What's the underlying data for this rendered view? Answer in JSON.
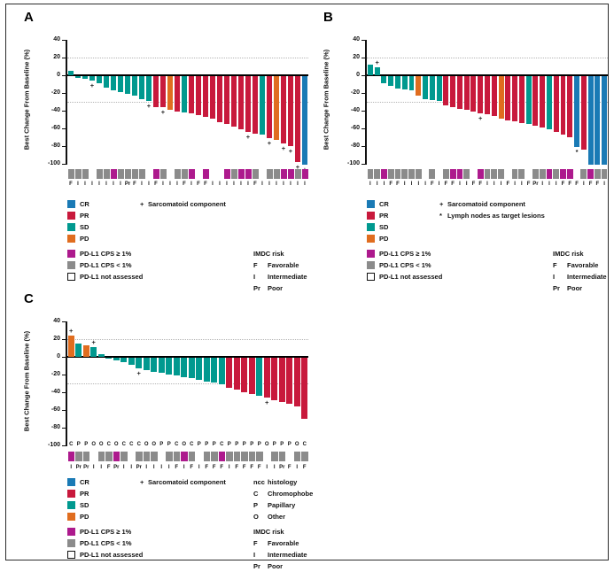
{
  "colors": {
    "CR": "#1A7AB5",
    "PR": "#C8193C",
    "SD": "#00998F",
    "PD": "#E06D1F",
    "pdl1_pos": "#AD1A8D",
    "pdl1_neg": "#8B8B8B",
    "pdl1_na": "#FFFFFF",
    "axis": "#111111",
    "refline": "#B4B4B4"
  },
  "legend": {
    "response": [
      {
        "code": "CR",
        "label": "CR"
      },
      {
        "code": "PR",
        "label": "PR"
      },
      {
        "code": "SD",
        "label": "SD"
      },
      {
        "code": "PD",
        "label": "PD"
      }
    ],
    "sarcomatoid_symbol": "+",
    "sarcomatoid": "Sarcomatoid component",
    "lymph_symbol": "*",
    "lymph": "Lymph nodes as target lesions",
    "pdl1": [
      {
        "key": "pos",
        "label": "PD-L1 CPS ≥ 1%"
      },
      {
        "key": "neg",
        "label": "PD-L1 CPS < 1%"
      },
      {
        "key": "na",
        "label": "PD-L1 not assessed"
      }
    ],
    "imdc": {
      "title": "IMDC risk",
      "entries": [
        [
          "F",
          "Favorable"
        ],
        [
          "I",
          "Intermediate"
        ],
        [
          "Pr",
          "Poor"
        ]
      ]
    },
    "ncc": {
      "title": [
        "ncc",
        "histology"
      ],
      "entries": [
        [
          "C",
          "Chromophobe"
        ],
        [
          "P",
          "Papillary"
        ],
        [
          "O",
          "Other"
        ]
      ]
    }
  },
  "chart_data": [
    {
      "panel": "A",
      "type": "bar",
      "ylabel": "Best Change From Baseline (%)",
      "ylim": [
        -100,
        40
      ],
      "yticks": [
        40,
        20,
        0,
        -20,
        -40,
        -60,
        -80,
        -100
      ],
      "ref_lines": [
        20,
        -30
      ],
      "grid": "dotted-reference-only",
      "legend_position": "below",
      "values": [
        5,
        -2,
        -3,
        -5,
        -8,
        -13,
        -16,
        -18,
        -20,
        -22,
        -26,
        -28,
        -35,
        -35,
        -38,
        -40,
        -41,
        -42,
        -44,
        -46,
        -48,
        -52,
        -54,
        -57,
        -60,
        -63,
        -65,
        -66,
        -70,
        -72,
        -76,
        -79,
        -97,
        -100
      ],
      "response": [
        "SD",
        "SD",
        "SD",
        "SD",
        "SD",
        "SD",
        "SD",
        "SD",
        "SD",
        "SD",
        "SD",
        "SD",
        "PR",
        "PR",
        "PD",
        "PR",
        "SD",
        "PR",
        "PR",
        "PR",
        "PR",
        "PR",
        "PR",
        "PR",
        "PR",
        "PR",
        "PR",
        "SD",
        "PR",
        "PD",
        "PR",
        "PR",
        "PR",
        "CR"
      ],
      "markers": [
        "",
        "",
        "",
        "+",
        "",
        "",
        "",
        "",
        "",
        "",
        "",
        "+",
        "",
        "+",
        "",
        "",
        "",
        "",
        "",
        "",
        "",
        "",
        "",
        "",
        "",
        "+",
        "",
        "",
        "+",
        "",
        "+",
        "+",
        "+",
        "+"
      ],
      "pdl1": [
        "neg",
        "neg",
        "neg",
        "na",
        "neg",
        "neg",
        "pos",
        "neg",
        "neg",
        "neg",
        "neg",
        "na",
        "pos",
        "neg",
        "na",
        "neg",
        "neg",
        "pos",
        "na",
        "pos",
        "na",
        "na",
        "pos",
        "neg",
        "pos",
        "pos",
        "neg",
        "na",
        "neg",
        "neg",
        "pos",
        "pos",
        "neg",
        "pos"
      ],
      "imdc": [
        "F",
        "I",
        "I",
        "I",
        "I",
        "I",
        "I",
        "I",
        "Pr",
        "F",
        "I",
        "I",
        "F",
        "I",
        "I",
        "I",
        "F",
        "I",
        "F",
        "F",
        "I",
        "I",
        "I",
        "I",
        "I",
        "I",
        "F",
        "I",
        "I",
        "I",
        "I",
        "I",
        "I",
        "I"
      ]
    },
    {
      "panel": "B",
      "type": "bar",
      "ylabel": "Best Change From Baseline (%)",
      "ylim": [
        -100,
        40
      ],
      "yticks": [
        40,
        20,
        0,
        -20,
        -40,
        -60,
        -80,
        -100
      ],
      "ref_lines": [
        20,
        -30
      ],
      "grid": "dotted-reference-only",
      "legend_position": "below",
      "values": [
        12,
        9,
        -8,
        -11,
        -14,
        -15,
        -16,
        -22,
        -26,
        -27,
        -28,
        -33,
        -35,
        -37,
        -38,
        -40,
        -42,
        -43,
        -45,
        -48,
        -50,
        -51,
        -53,
        -54,
        -56,
        -58,
        -60,
        -63,
        -66,
        -69,
        -80,
        -83,
        -100,
        -100,
        -100
      ],
      "response": [
        "SD",
        "SD",
        "SD",
        "SD",
        "SD",
        "SD",
        "SD",
        "PD",
        "SD",
        "SD",
        "SD",
        "PR",
        "PR",
        "PR",
        "PR",
        "PR",
        "PR",
        "PR",
        "PR",
        "PD",
        "PR",
        "PR",
        "PR",
        "SD",
        "PR",
        "PR",
        "SD",
        "PR",
        "PR",
        "PR",
        "CR",
        "PR",
        "CR",
        "CR",
        "CR"
      ],
      "markers": [
        "",
        "+",
        "",
        "",
        "",
        "",
        "",
        "",
        "",
        "",
        "",
        "",
        "",
        "",
        "",
        "",
        "+",
        "",
        "",
        "",
        "",
        "",
        "",
        "",
        "",
        "",
        "",
        "",
        "",
        "",
        "*",
        "",
        "",
        "",
        ""
      ],
      "pdl1": [
        "neg",
        "neg",
        "pos",
        "neg",
        "neg",
        "neg",
        "neg",
        "neg",
        "na",
        "neg",
        "na",
        "neg",
        "pos",
        "pos",
        "neg",
        "na",
        "pos",
        "neg",
        "neg",
        "neg",
        "na",
        "neg",
        "neg",
        "na",
        "neg",
        "neg",
        "pos",
        "neg",
        "pos",
        "pos",
        "na",
        "neg",
        "pos",
        "neg",
        "neg"
      ],
      "imdc": [
        "I",
        "I",
        "I",
        "F",
        "F",
        "I",
        "I",
        "I",
        "I",
        "F",
        "I",
        "F",
        "F",
        "I",
        "I",
        "F",
        "F",
        "I",
        "I",
        "I",
        "F",
        "I",
        "I",
        "F",
        "Pr",
        "I",
        "I",
        "I",
        "F",
        "F",
        "F",
        "I",
        "F",
        "F",
        "I"
      ]
    },
    {
      "panel": "C",
      "type": "bar",
      "ylabel": "Best Change From Baseline (%)",
      "ylim": [
        -100,
        40
      ],
      "yticks": [
        40,
        20,
        0,
        -20,
        -40,
        -60,
        -80,
        -100
      ],
      "ref_lines": [
        20,
        -30
      ],
      "grid": "dotted-reference-only",
      "legend_position": "below",
      "values": [
        24,
        15,
        13,
        11,
        3,
        -1,
        -3,
        -5,
        -8,
        -12,
        -14,
        -16,
        -17,
        -19,
        -20,
        -22,
        -23,
        -25,
        -27,
        -28,
        -30,
        -34,
        -36,
        -39,
        -41,
        -43,
        -45,
        -48,
        -50,
        -52,
        -55,
        -69
      ],
      "response": [
        "PD",
        "SD",
        "PD",
        "SD",
        "SD",
        "SD",
        "SD",
        "SD",
        "SD",
        "SD",
        "SD",
        "SD",
        "SD",
        "SD",
        "SD",
        "SD",
        "SD",
        "SD",
        "SD",
        "SD",
        "SD",
        "PR",
        "PR",
        "PR",
        "PR",
        "SD",
        "PR",
        "PR",
        "PR",
        "PR",
        "PR",
        "PR"
      ],
      "markers": [
        "+",
        "",
        "",
        "+",
        "",
        "",
        "",
        "",
        "",
        "+",
        "",
        "",
        "",
        "",
        "",
        "",
        "",
        "",
        "",
        "",
        "",
        "",
        "",
        "",
        "",
        "",
        "+",
        "",
        "",
        "",
        "",
        ""
      ],
      "histology": [
        "C",
        "P",
        "P",
        "O",
        "O",
        "C",
        "O",
        "C",
        "C",
        "C",
        "O",
        "O",
        "P",
        "P",
        "C",
        "O",
        "C",
        "P",
        "P",
        "P",
        "C",
        "P",
        "P",
        "P",
        "P",
        "P",
        "O",
        "P",
        "P",
        "P",
        "O",
        "C"
      ],
      "pdl1": [
        "pos",
        "neg",
        "neg",
        "na",
        "neg",
        "neg",
        "pos",
        "neg",
        "na",
        "neg",
        "neg",
        "neg",
        "na",
        "neg",
        "neg",
        "pos",
        "neg",
        "na",
        "neg",
        "neg",
        "pos",
        "neg",
        "neg",
        "neg",
        "neg",
        "neg",
        "na",
        "neg",
        "neg",
        "na",
        "neg",
        "neg"
      ],
      "imdc": [
        "I",
        "Pr",
        "Pr",
        "I",
        "I",
        "F",
        "Pr",
        "I",
        "I",
        "Pr",
        "I",
        "I",
        "I",
        "I",
        "F",
        "I",
        "F",
        "I",
        "F",
        "F",
        "F",
        "I",
        "F",
        "F",
        "F",
        "F",
        "I",
        "I",
        "Pr",
        "F",
        "I",
        "F"
      ]
    }
  ]
}
